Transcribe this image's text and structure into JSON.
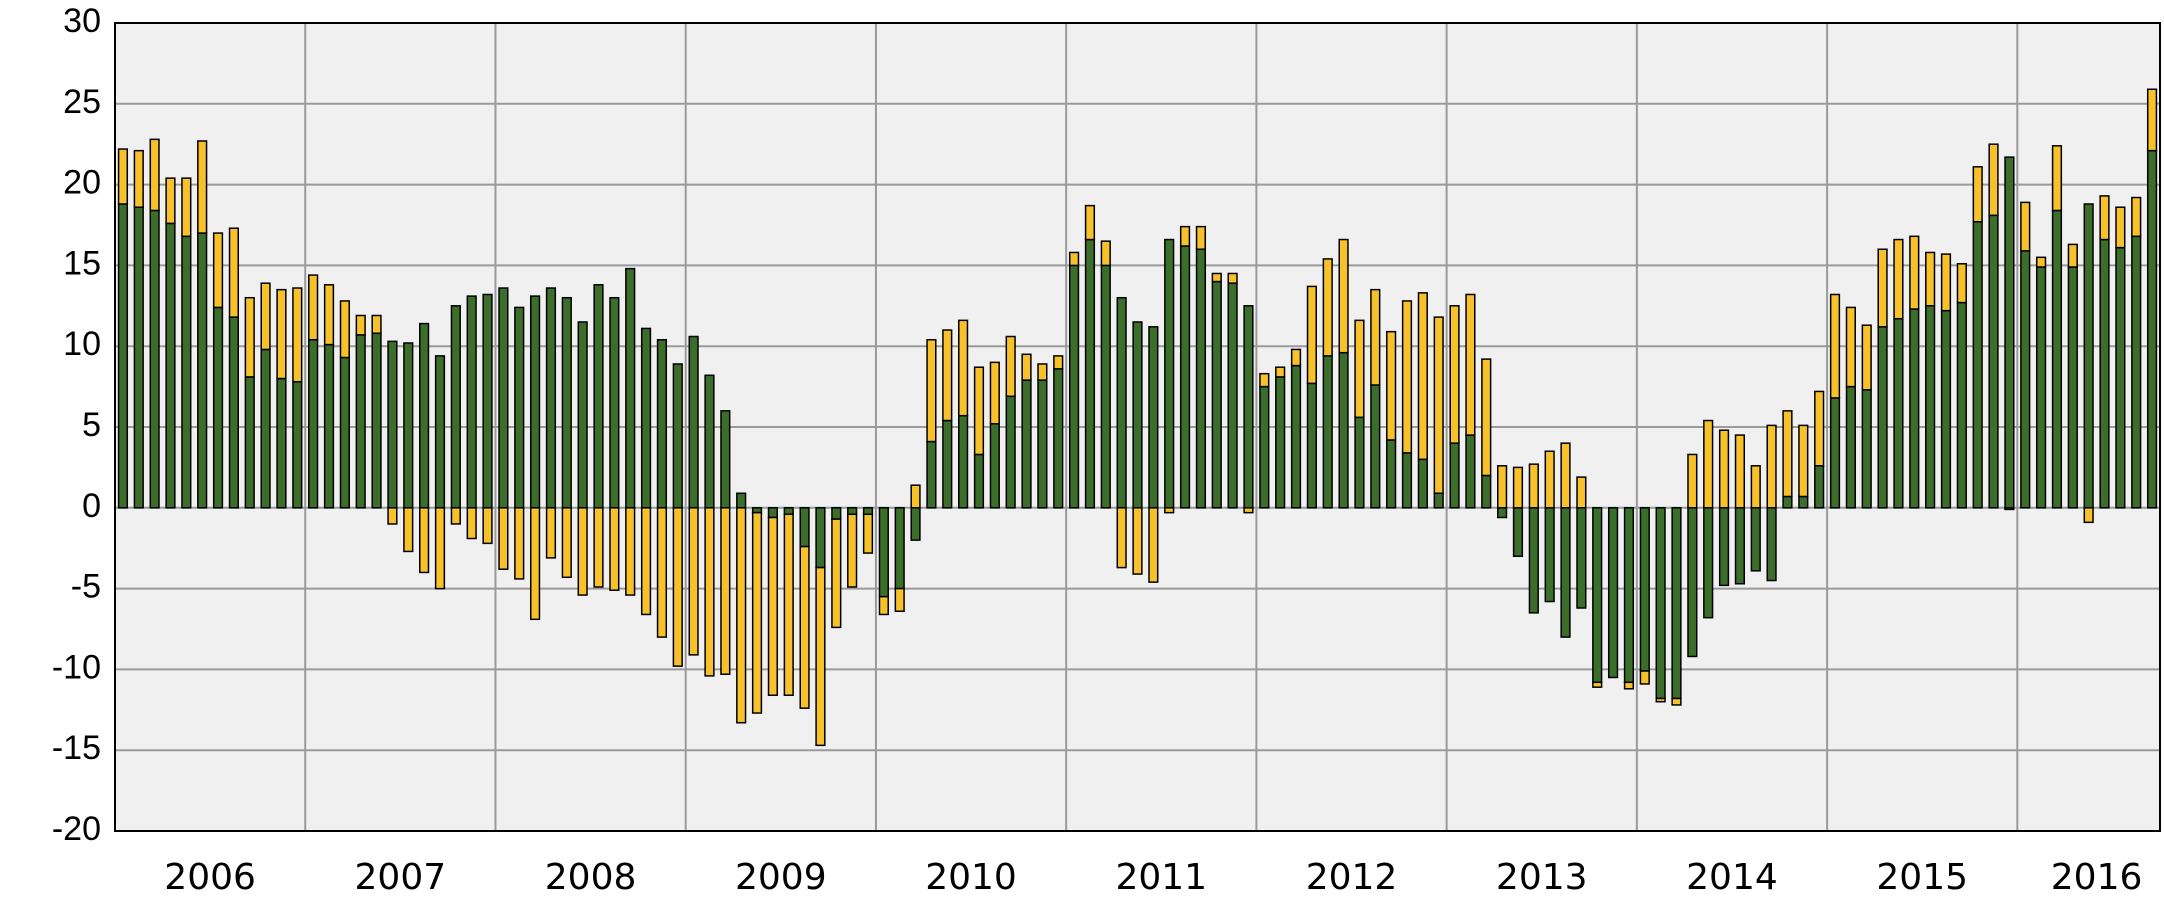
{
  "chart_data": {
    "type": "stacked-bar",
    "categories": [
      null,
      null,
      null,
      null,
      null,
      "2006",
      null,
      null,
      null,
      null,
      null,
      null,
      null,
      null,
      null,
      null,
      null,
      "2007",
      null,
      null,
      null,
      null,
      null,
      null,
      null,
      null,
      null,
      null,
      null,
      "2008",
      null,
      null,
      null,
      null,
      null,
      null,
      null,
      null,
      null,
      null,
      null,
      "2009",
      null,
      null,
      null,
      null,
      null,
      null,
      null,
      null,
      null,
      null,
      null,
      "2010",
      null,
      null,
      null,
      null,
      null,
      null,
      null,
      null,
      null,
      null,
      null,
      "2011",
      null,
      null,
      null,
      null,
      null,
      null,
      null,
      null,
      null,
      null,
      null,
      "2012",
      null,
      null,
      null,
      null,
      null,
      null,
      null,
      null,
      null,
      null,
      null,
      "2013",
      null,
      null,
      null,
      null,
      null,
      null,
      null,
      null,
      null,
      null,
      null,
      "2014",
      null,
      null,
      null,
      null,
      null,
      null,
      null,
      null,
      null,
      null,
      null,
      "2015",
      null,
      null,
      null,
      null,
      null,
      null,
      null,
      null,
      null,
      null,
      "2016",
      null,
      null,
      null,
      null
    ],
    "series": [
      {
        "color": "#3b6e2a",
        "values": [
          18.8,
          18.6,
          18.4,
          17.6,
          16.8,
          17.0,
          12.4,
          11.8,
          8.1,
          9.8,
          8.0,
          7.8,
          10.4,
          10.1,
          9.3,
          10.7,
          10.8,
          10.3,
          10.2,
          11.4,
          9.4,
          12.5,
          13.1,
          13.2,
          13.6,
          12.4,
          13.1,
          13.6,
          13.0,
          11.5,
          13.8,
          13.0,
          14.8,
          11.1,
          10.4,
          8.9,
          10.6,
          8.2,
          6.0,
          0.9,
          -0.3,
          -0.6,
          -0.4,
          -2.4,
          -3.7,
          -0.7,
          -0.4,
          -0.4,
          -5.5,
          -5.0,
          -2.0,
          4.1,
          5.4,
          5.7,
          3.3,
          5.2,
          6.9,
          7.9,
          7.9,
          8.6,
          15.0,
          16.6,
          15.0,
          13.0,
          11.5,
          11.2,
          16.6,
          16.2,
          16.0,
          14.0,
          13.9,
          12.5,
          7.5,
          8.1,
          8.8,
          7.7,
          9.4,
          9.6,
          5.6,
          7.6,
          4.2,
          3.4,
          3.0,
          0.9,
          4.0,
          4.5,
          2.0,
          -0.6,
          -3.0,
          -6.5,
          -5.8,
          -8.0,
          -6.2,
          -10.8,
          -10.5,
          -10.8,
          -10.1,
          -11.8,
          -11.8,
          -9.2,
          -6.8,
          -4.8,
          -4.7,
          -3.9,
          -4.5,
          0.7,
          0.7,
          2.6,
          6.8,
          7.5,
          7.3,
          11.2,
          11.7,
          12.3,
          12.5,
          12.2,
          12.7,
          17.7,
          18.1,
          21.7,
          15.9,
          14.9,
          18.4,
          14.9,
          18.8,
          16.6,
          16.1,
          16.8,
          22.1
        ]
      },
      {
        "color": "#f6c12a",
        "values": [
          3.4,
          3.5,
          4.4,
          2.8,
          3.6,
          5.7,
          4.6,
          5.5,
          4.9,
          4.1,
          5.5,
          5.8,
          4.0,
          3.7,
          3.5,
          1.2,
          1.1,
          -1.0,
          -2.7,
          -4.0,
          -5.0,
          -1.0,
          -1.9,
          -2.2,
          -3.8,
          -4.4,
          -6.9,
          -3.1,
          -4.3,
          -5.4,
          -4.9,
          -5.1,
          -5.4,
          -6.6,
          -8.0,
          -9.8,
          -9.1,
          -10.4,
          -10.3,
          -13.3,
          -12.4,
          -11.0,
          -11.2,
          -10.0,
          -11.0,
          -6.7,
          -4.5,
          -2.4,
          -1.1,
          -1.4,
          1.4,
          6.3,
          5.6,
          5.9,
          5.4,
          3.8,
          3.7,
          1.6,
          1.0,
          0.8,
          0.8,
          2.1,
          1.5,
          -3.7,
          -4.1,
          -4.6,
          -0.3,
          1.2,
          1.4,
          0.5,
          0.6,
          -0.3,
          0.8,
          0.6,
          1.0,
          6.0,
          6.0,
          7.0,
          6.0,
          5.9,
          6.7,
          9.4,
          10.3,
          10.9,
          8.5,
          8.7,
          7.2,
          2.6,
          2.5,
          2.7,
          3.5,
          4.0,
          1.9,
          -0.3,
          0,
          -0.4,
          -0.8,
          -0.2,
          -0.4,
          3.3,
          5.4,
          4.8,
          4.5,
          2.6,
          5.1,
          5.3,
          4.4,
          4.6,
          6.4,
          4.9,
          4.0,
          4.8,
          4.9,
          4.5,
          3.3,
          3.5,
          2.4,
          3.4,
          4.4,
          -0.1,
          3.0,
          0.6,
          4.0,
          1.4,
          -0.9,
          2.7,
          2.5,
          2.4,
          3.8
        ]
      }
    ],
    "ylim": [
      -20,
      30
    ],
    "yticks": [
      -20,
      -15,
      -10,
      -5,
      0,
      5,
      10,
      15,
      20,
      25,
      30
    ],
    "grid": true
  }
}
